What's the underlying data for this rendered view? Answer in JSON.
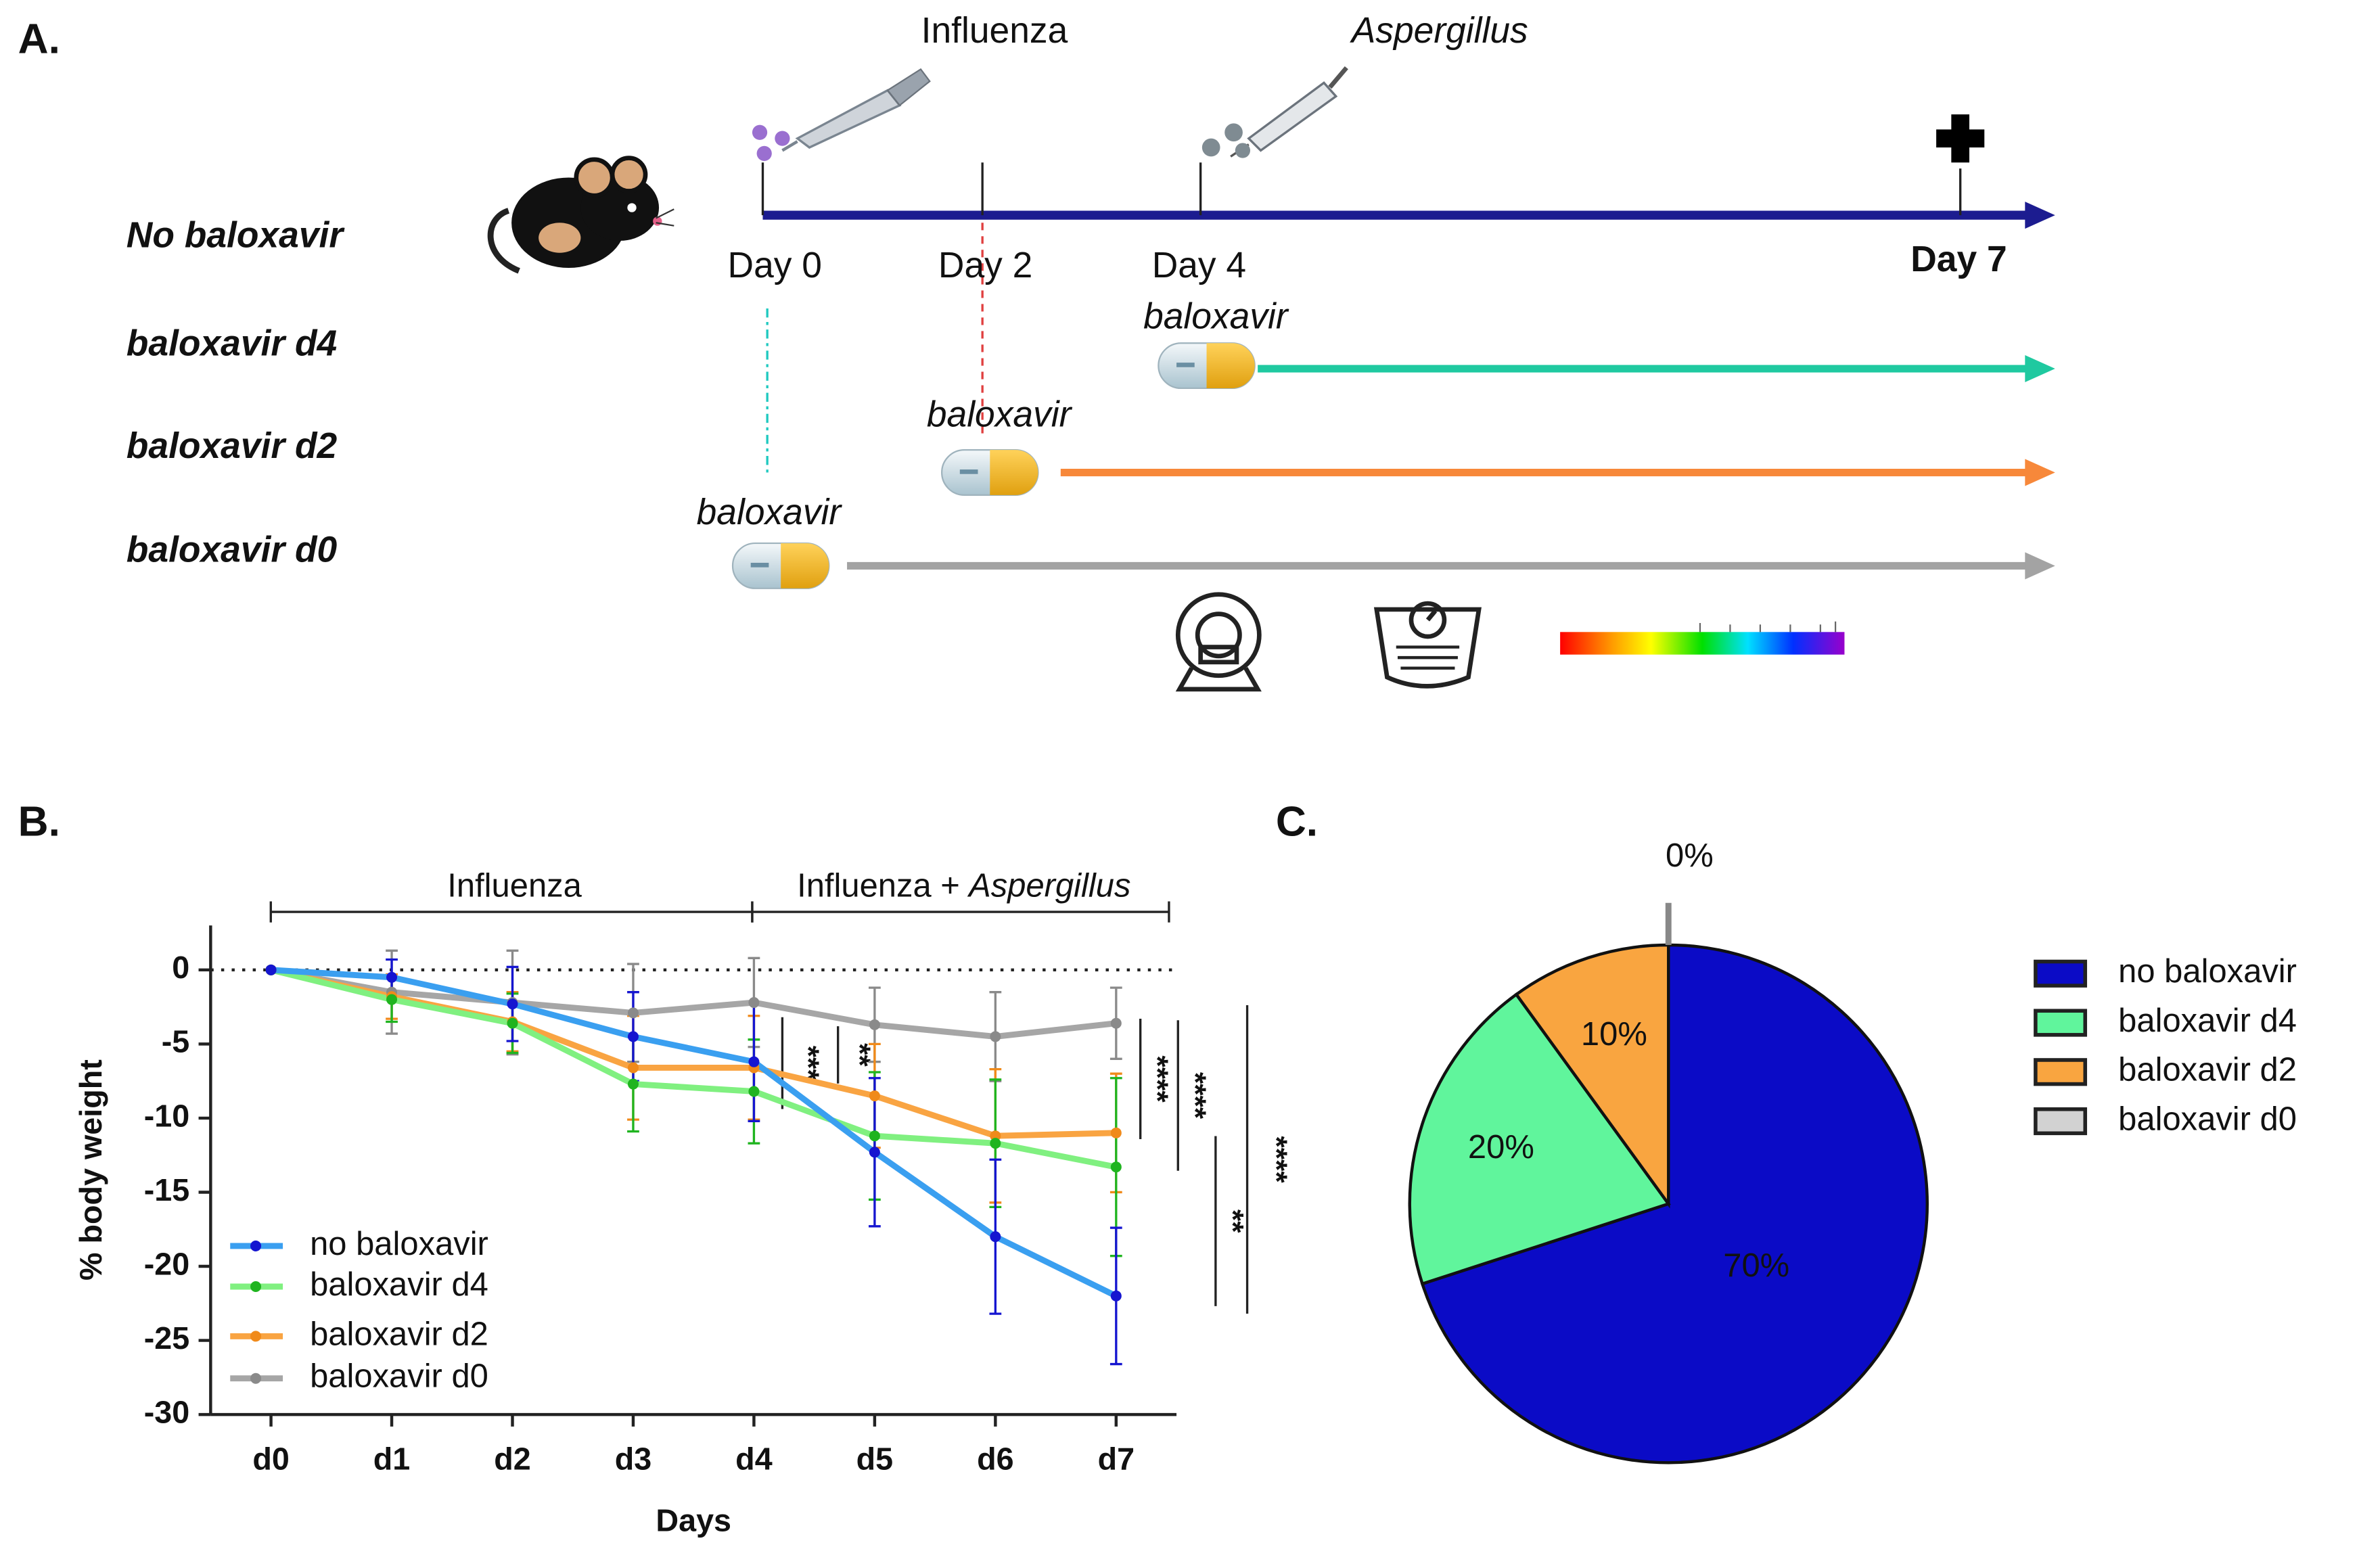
{
  "diagram": {
    "label": "A.",
    "groups": [
      {
        "name": "No baloxavir",
        "color": "#1c1c90"
      },
      {
        "name": "baloxavir d4",
        "color": "#1fc9a0"
      },
      {
        "name": "baloxavir d2",
        "color": "#f7883a"
      },
      {
        "name": "baloxavir d0",
        "color": "#a3a3a3"
      }
    ],
    "events": [
      "Influenza",
      "Aspergillus"
    ],
    "days": [
      "Day 0",
      "Day 2",
      "Day 4",
      "Day 7"
    ],
    "treatment": "baloxavir"
  },
  "chart_data": [
    {
      "type": "line",
      "label": "B.",
      "categories": [
        "d0",
        "d1",
        "d2",
        "d3",
        "d4",
        "d5",
        "d6",
        "d7"
      ],
      "xlabel": "Days",
      "ylabel": "% body weight",
      "ylim": [
        -30,
        3
      ],
      "yticks": [
        0,
        -5,
        -10,
        -15,
        -20,
        -25,
        -30
      ],
      "phases": [
        {
          "label": "Influenza"
        },
        {
          "label": "Influenza +",
          "italic": "Aspergillus"
        }
      ],
      "significance": [
        "***",
        "**",
        "****",
        "****",
        "**",
        "****"
      ],
      "series": [
        {
          "name": "no baloxavir",
          "color": "#3a9ff0",
          "marker_color": "#1515d0",
          "values": [
            0,
            -0.5,
            -2.3,
            -4.5,
            -6.2,
            -12.3,
            -18,
            -22
          ],
          "errors": [
            0,
            1.2,
            2.5,
            3,
            4,
            5,
            5.2,
            4.6
          ]
        },
        {
          "name": "baloxavir d4",
          "color": "#80f080",
          "marker_color": "#1fb41f",
          "values": [
            0,
            -2,
            -3.6,
            -7.7,
            -8.2,
            -11.2,
            -11.7,
            -13.3
          ],
          "errors": [
            0,
            1.5,
            2,
            3.2,
            3.5,
            4.3,
            4.3,
            6
          ]
        },
        {
          "name": "baloxavir d2",
          "color": "#f9a442",
          "marker_color": "#f08a1a",
          "values": [
            0,
            -1.8,
            -3.5,
            -6.6,
            -6.6,
            -8.5,
            -11.2,
            -11
          ],
          "errors": [
            0,
            1.5,
            2,
            3.5,
            3.5,
            3.5,
            4.5,
            4
          ]
        },
        {
          "name": "baloxavir d0",
          "color": "#a6a6a6",
          "marker_color": "#8a8a8a",
          "values": [
            0,
            -1.5,
            -2.2,
            -2.9,
            -2.2,
            -3.7,
            -4.5,
            -3.6
          ],
          "errors": [
            0,
            2.8,
            3.5,
            3.3,
            3,
            2.5,
            3,
            2.4
          ]
        }
      ]
    },
    {
      "type": "pie",
      "label": "C.",
      "categories": [
        "no baloxavir",
        "baloxavir d4",
        "baloxavir d2",
        "baloxavir d0"
      ],
      "values": [
        70,
        20,
        10,
        0
      ],
      "value_labels": [
        "70%",
        "20%",
        "10%",
        "0%"
      ],
      "colors": [
        "#0b0bc6",
        "#60f59c",
        "#f9a540",
        "#d2d2d2"
      ]
    }
  ]
}
